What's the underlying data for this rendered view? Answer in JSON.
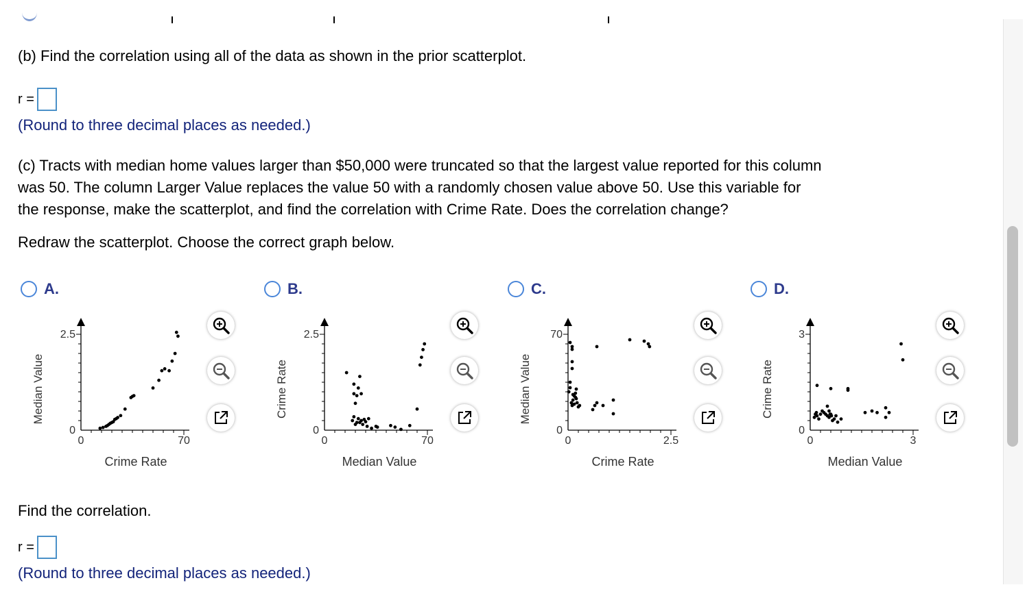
{
  "part_b": {
    "question": "(b) Find the correlation using all of the data as shown in the prior scatterplot.",
    "r_label": "r =",
    "hint": "(Round to three decimal places as needed.)"
  },
  "part_c": {
    "question_line1": "(c) Tracts with median home values larger than $50,000 were truncated so that the largest value reported for this column",
    "question_line2": "was 50. The column Larger Value replaces the value 50 with a randomly chosen value above 50. Use this variable for",
    "question_line3": "the response, make the scatterplot, and find the correlation with Crime Rate. Does the correlation change?",
    "instruction": "Redraw the scatterplot. Choose the correct graph below.",
    "find": "Find the correlation.",
    "r_label": "r =",
    "hint": "(Round to three decimal places as needed.)"
  },
  "colors": {
    "hint_text": "#12237a",
    "choice_label": "#2d3a8c",
    "radio_border": "#4a86d9",
    "answer_box_border": "#4a90c8"
  },
  "icons": [
    "zoom-in-icon",
    "zoom-out-icon",
    "popout-icon"
  ],
  "chart_data": [
    {
      "type": "scatter",
      "choice": "A.",
      "xlabel": "Crime Rate",
      "ylabel": "Median Value",
      "x_ticks": [
        "0",
        "70"
      ],
      "y_ticks": [
        "0",
        "2.5"
      ],
      "xlim": [
        0,
        70
      ],
      "ylim": [
        0,
        2.5
      ],
      "points": [
        [
          13,
          0.05
        ],
        [
          15,
          0.07
        ],
        [
          17,
          0.1
        ],
        [
          18,
          0.12
        ],
        [
          19,
          0.15
        ],
        [
          20,
          0.18
        ],
        [
          21,
          0.2
        ],
        [
          22,
          0.22
        ],
        [
          23,
          0.28
        ],
        [
          24,
          0.3
        ],
        [
          25,
          0.33
        ],
        [
          27,
          0.38
        ],
        [
          30,
          0.55
        ],
        [
          34,
          0.85
        ],
        [
          35,
          0.88
        ],
        [
          36,
          0.9
        ],
        [
          49,
          1.1
        ],
        [
          53,
          1.3
        ],
        [
          55,
          1.55
        ],
        [
          57,
          1.6
        ],
        [
          60,
          1.55
        ],
        [
          64,
          2.0
        ],
        [
          65,
          2.55
        ],
        [
          66,
          2.45
        ],
        [
          62,
          1.8
        ]
      ]
    },
    {
      "type": "scatter",
      "choice": "B.",
      "xlabel": "Median Value",
      "ylabel": "Crime Rate",
      "x_ticks": [
        "0",
        "70"
      ],
      "y_ticks": [
        "0",
        "2.5"
      ],
      "xlim": [
        0,
        70
      ],
      "ylim": [
        0,
        2.5
      ],
      "points": [
        [
          15,
          1.5
        ],
        [
          20,
          0.95
        ],
        [
          20,
          1.2
        ],
        [
          21,
          0.7
        ],
        [
          22,
          0.9
        ],
        [
          23,
          1.1
        ],
        [
          24,
          1.4
        ],
        [
          25,
          0.95
        ],
        [
          19,
          0.25
        ],
        [
          20,
          0.35
        ],
        [
          21,
          0.15
        ],
        [
          22,
          0.2
        ],
        [
          23,
          0.3
        ],
        [
          24,
          0.2
        ],
        [
          25,
          0.25
        ],
        [
          26,
          0.15
        ],
        [
          27,
          0.28
        ],
        [
          28,
          0.22
        ],
        [
          29,
          0.1
        ],
        [
          30,
          0.3
        ],
        [
          32,
          0.05
        ],
        [
          35,
          0.1
        ],
        [
          36,
          0.08
        ],
        [
          45,
          0.12
        ],
        [
          48,
          0.08
        ],
        [
          52,
          0.02
        ],
        [
          58,
          0.12
        ],
        [
          63,
          0.55
        ],
        [
          65,
          1.7
        ],
        [
          66,
          1.9
        ],
        [
          67,
          2.1
        ],
        [
          68,
          2.25
        ]
      ]
    },
    {
      "type": "scatter",
      "choice": "C.",
      "xlabel": "Crime Rate",
      "ylabel": "Median Value",
      "x_ticks": [
        "0",
        "2.5"
      ],
      "y_ticks": [
        "0",
        "70"
      ],
      "xlim": [
        0,
        2.5
      ],
      "ylim": [
        0,
        70
      ],
      "points": [
        [
          0.02,
          28
        ],
        [
          0.05,
          31
        ],
        [
          0.05,
          35
        ],
        [
          0.08,
          20
        ],
        [
          0.1,
          45
        ],
        [
          0.1,
          50
        ],
        [
          0.1,
          59
        ],
        [
          0.1,
          61
        ],
        [
          0.05,
          64
        ],
        [
          0.1,
          18
        ],
        [
          0.12,
          22
        ],
        [
          0.15,
          25
        ],
        [
          0.18,
          27
        ],
        [
          0.2,
          30
        ],
        [
          0.22,
          20
        ],
        [
          0.25,
          17
        ],
        [
          0.28,
          18
        ],
        [
          0.2,
          23
        ],
        [
          0.15,
          19
        ],
        [
          0.12,
          26
        ],
        [
          0.18,
          24
        ],
        [
          0.6,
          15
        ],
        [
          0.65,
          18
        ],
        [
          0.7,
          20
        ],
        [
          0.85,
          18
        ],
        [
          1.1,
          22
        ],
        [
          1.1,
          12
        ],
        [
          0.7,
          61
        ],
        [
          1.5,
          66
        ],
        [
          1.85,
          65
        ],
        [
          1.95,
          63
        ],
        [
          1.98,
          61
        ]
      ]
    },
    {
      "type": "scatter",
      "choice": "D.",
      "xlabel": "Median Value",
      "ylabel": "Crime Rate",
      "x_ticks": [
        "0",
        "3"
      ],
      "y_ticks": [
        "0",
        "3"
      ],
      "xlim": [
        0,
        3
      ],
      "ylim": [
        0,
        3
      ],
      "points": [
        [
          0.2,
          1.4
        ],
        [
          0.6,
          1.3
        ],
        [
          1.1,
          1.3
        ],
        [
          1.1,
          1.25
        ],
        [
          0.12,
          0.4
        ],
        [
          0.15,
          0.5
        ],
        [
          0.18,
          0.55
        ],
        [
          0.2,
          0.45
        ],
        [
          0.25,
          0.35
        ],
        [
          0.3,
          0.5
        ],
        [
          0.35,
          0.6
        ],
        [
          0.4,
          0.55
        ],
        [
          0.45,
          0.5
        ],
        [
          0.5,
          0.45
        ],
        [
          0.55,
          0.4
        ],
        [
          0.6,
          0.5
        ],
        [
          0.65,
          0.3
        ],
        [
          0.7,
          0.35
        ],
        [
          0.75,
          0.45
        ],
        [
          0.8,
          0.25
        ],
        [
          0.9,
          0.35
        ],
        [
          0.5,
          0.75
        ],
        [
          0.55,
          0.6
        ],
        [
          0.58,
          0.5
        ],
        [
          0.62,
          0.45
        ],
        [
          1.6,
          0.55
        ],
        [
          1.8,
          0.6
        ],
        [
          1.95,
          0.55
        ],
        [
          2.2,
          0.7
        ],
        [
          2.2,
          0.4
        ],
        [
          2.3,
          0.55
        ],
        [
          2.65,
          2.7
        ],
        [
          2.7,
          2.2
        ]
      ]
    }
  ]
}
